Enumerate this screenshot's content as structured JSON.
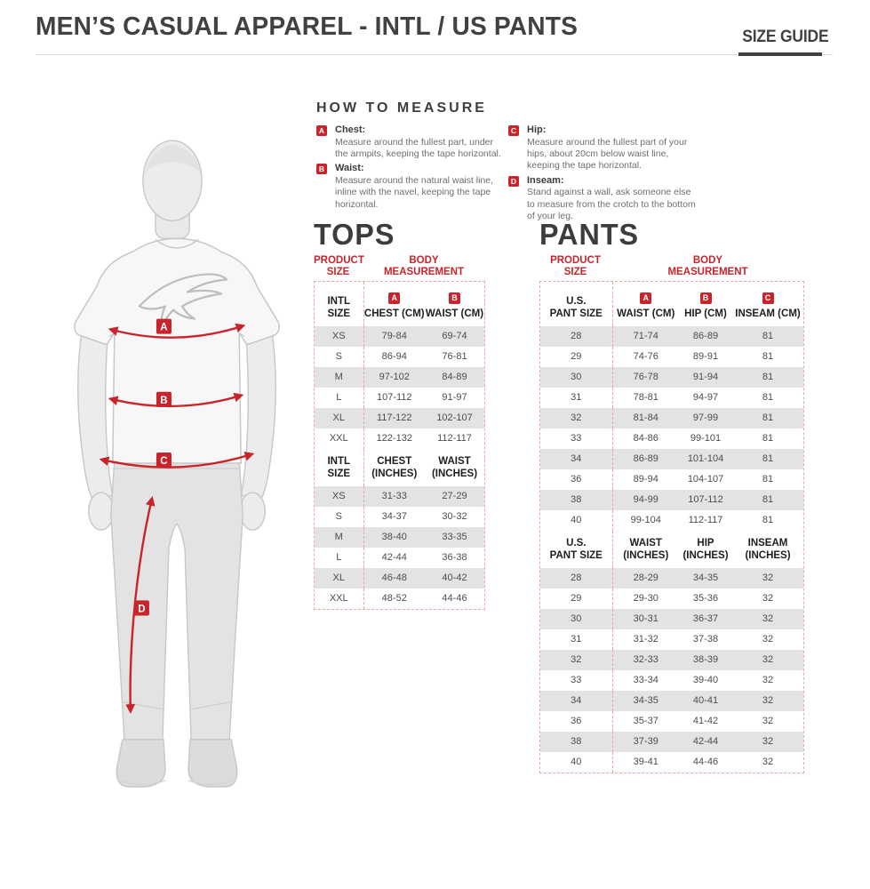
{
  "header": {
    "title": "MEN’S CASUAL APPAREL - INTL / US PANTS",
    "size_guide_label": "SIZE GUIDE"
  },
  "how_to_measure": {
    "heading": "HOW TO MEASURE",
    "items": [
      {
        "marker": "A",
        "name": "Chest:",
        "description": "Measure around the fullest part, under the armpits, keeping the tape horizontal."
      },
      {
        "marker": "B",
        "name": "Waist:",
        "description": "Measure around the natural waist line, inline with the navel, keeping the tape horizontal."
      },
      {
        "marker": "C",
        "name": "Hip:",
        "description": "Measure around the fullest part of your hips, about 20cm below waist line, keeping the tape horizontal."
      },
      {
        "marker": "D",
        "name": "Inseam:",
        "description": "Stand against a wall, ask someone else to measure from the crotch to the bottom of your leg."
      }
    ]
  },
  "figure": {
    "marker_a": "A",
    "marker_b": "B",
    "marker_c": "C",
    "marker_d": "D"
  },
  "tops": {
    "heading": "TOPS",
    "product_size_label": [
      "PRODUCT",
      "SIZE"
    ],
    "body_measurement_label": [
      "BODY",
      "MEASUREMENT"
    ],
    "cm": {
      "size_header": [
        "INTL",
        "SIZE"
      ],
      "columns": [
        {
          "badge": "A",
          "label": "CHEST (CM)"
        },
        {
          "badge": "B",
          "label": "WAIST (CM)"
        }
      ],
      "rows": [
        [
          "XS",
          "79-84",
          "69-74"
        ],
        [
          "S",
          "86-94",
          "76-81"
        ],
        [
          "M",
          "97-102",
          "84-89"
        ],
        [
          "L",
          "107-112",
          "91-97"
        ],
        [
          "XL",
          "117-122",
          "102-107"
        ],
        [
          "XXL",
          "122-132",
          "112-117"
        ]
      ]
    },
    "inches": {
      "size_header": [
        "INTL",
        "SIZE"
      ],
      "columns": [
        {
          "label": "CHEST (INCHES)"
        },
        {
          "label": "WAIST (INCHES)"
        }
      ],
      "rows": [
        [
          "XS",
          "31-33",
          "27-29"
        ],
        [
          "S",
          "34-37",
          "30-32"
        ],
        [
          "M",
          "38-40",
          "33-35"
        ],
        [
          "L",
          "42-44",
          "36-38"
        ],
        [
          "XL",
          "46-48",
          "40-42"
        ],
        [
          "XXL",
          "48-52",
          "44-46"
        ]
      ]
    }
  },
  "pants": {
    "heading": "PANTS",
    "product_size_label": [
      "PRODUCT",
      "SIZE"
    ],
    "body_measurement_label": [
      "BODY",
      "MEASUREMENT"
    ],
    "cm": {
      "size_header": [
        "U.S.",
        "PANT SIZE"
      ],
      "columns": [
        {
          "badge": "A",
          "label": "WAIST (CM)"
        },
        {
          "badge": "B",
          "label": "HIP (CM)"
        },
        {
          "badge": "C",
          "label": "INSEAM (CM)"
        }
      ],
      "rows": [
        [
          "28",
          "71-74",
          "86-89",
          "81"
        ],
        [
          "29",
          "74-76",
          "89-91",
          "81"
        ],
        [
          "30",
          "76-78",
          "91-94",
          "81"
        ],
        [
          "31",
          "78-81",
          "94-97",
          "81"
        ],
        [
          "32",
          "81-84",
          "97-99",
          "81"
        ],
        [
          "33",
          "84-86",
          "99-101",
          "81"
        ],
        [
          "34",
          "86-89",
          "101-104",
          "81"
        ],
        [
          "36",
          "89-94",
          "104-107",
          "81"
        ],
        [
          "38",
          "94-99",
          "107-112",
          "81"
        ],
        [
          "40",
          "99-104",
          "112-117",
          "81"
        ]
      ]
    },
    "inches": {
      "size_header": [
        "U.S.",
        "PANT SIZE"
      ],
      "columns": [
        {
          "label": "WAIST (INCHES)"
        },
        {
          "label": "HIP (INCHES)"
        },
        {
          "label": "INSEAM (INCHES)"
        }
      ],
      "rows": [
        [
          "28",
          "28-29",
          "34-35",
          "32"
        ],
        [
          "29",
          "29-30",
          "35-36",
          "32"
        ],
        [
          "30",
          "30-31",
          "36-37",
          "32"
        ],
        [
          "31",
          "31-32",
          "37-38",
          "32"
        ],
        [
          "32",
          "32-33",
          "38-39",
          "32"
        ],
        [
          "33",
          "33-34",
          "39-40",
          "32"
        ],
        [
          "34",
          "34-35",
          "40-41",
          "32"
        ],
        [
          "36",
          "35-37",
          "41-42",
          "32"
        ],
        [
          "38",
          "37-39",
          "42-44",
          "32"
        ],
        [
          "40",
          "39-41",
          "44-46",
          "32"
        ]
      ]
    }
  },
  "colors": {
    "accent_red": "#c9242b",
    "row_stripe_gray": "#e3e3e3",
    "title_gray": "#414141",
    "dashed_border": "#e6a9a6"
  }
}
